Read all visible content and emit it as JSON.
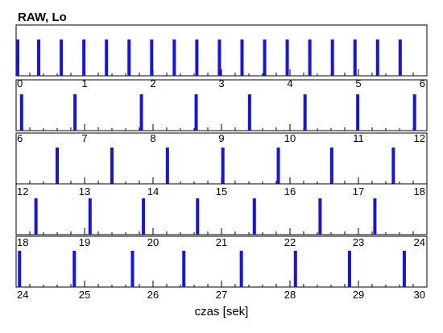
{
  "title": "RAW, Lo",
  "xlabel": "czas [sek]",
  "colors": {
    "pulse": "#1414e6",
    "frame": "#000000",
    "tick": "#000000"
  },
  "chart_data": {
    "type": "bar",
    "title": "RAW, Lo",
    "xlabel": "czas [sek]",
    "ylabel": "",
    "grid": false,
    "legend": "none",
    "panel_span_sec": 6,
    "panels": [
      {
        "xlim": [
          0,
          6
        ],
        "tick_labels": [
          "0",
          "1",
          "2",
          "3",
          "4",
          "5",
          "6"
        ],
        "pulses": [
          0.0,
          0.33,
          0.66,
          0.99,
          1.32,
          1.65,
          1.98,
          2.31,
          2.64,
          2.97,
          3.3,
          3.63,
          3.96,
          4.29,
          4.62,
          4.95,
          5.28,
          5.61
        ]
      },
      {
        "xlim": [
          6,
          12
        ],
        "tick_labels": [
          "6",
          "7",
          "8",
          "9",
          "10",
          "11",
          "12"
        ],
        "pulses": [
          6.08,
          6.86,
          7.83,
          8.63,
          9.41,
          10.22,
          10.99,
          11.82
        ]
      },
      {
        "xlim": [
          12,
          18
        ],
        "tick_labels": [
          "12",
          "13",
          "14",
          "15",
          "16",
          "17",
          "18"
        ],
        "pulses": [
          12.6,
          13.4,
          14.21,
          15.02,
          15.83,
          16.61,
          17.51
        ]
      },
      {
        "xlim": [
          18,
          24
        ],
        "tick_labels": [
          "18",
          "19",
          "20",
          "21",
          "22",
          "23",
          "24"
        ],
        "pulses": [
          18.29,
          19.08,
          19.86,
          20.65,
          21.48,
          22.44,
          23.24
        ]
      },
      {
        "xlim": [
          24,
          30
        ],
        "tick_labels": [
          "24",
          "25",
          "26",
          "27",
          "28",
          "29",
          "30"
        ],
        "pulses": [
          24.05,
          24.85,
          25.7,
          26.45,
          27.29,
          28.08,
          28.87,
          29.67
        ]
      }
    ]
  }
}
